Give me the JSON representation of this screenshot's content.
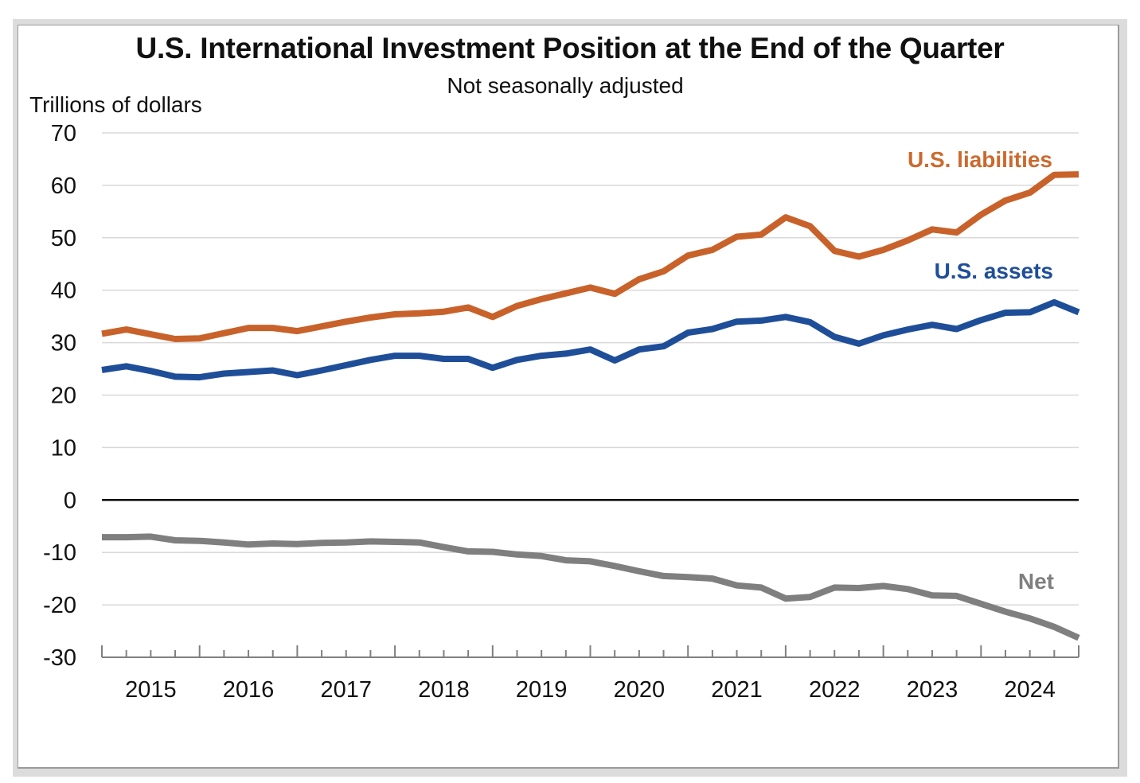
{
  "chart_data": {
    "type": "line",
    "title": "U.S. International Investment Position at the End of the Quarter",
    "subtitle": "Not seasonally adjusted",
    "ylabel": "Trillions of dollars",
    "xlabel": "",
    "ylim": [
      -30,
      70
    ],
    "yticks": [
      70,
      60,
      50,
      40,
      30,
      20,
      10,
      0,
      -10,
      -20,
      -30
    ],
    "year_labels": [
      "2015",
      "2016",
      "2017",
      "2018",
      "2019",
      "2020",
      "2021",
      "2022",
      "2023",
      "2024"
    ],
    "x": [
      "2014Q4",
      "2015Q1",
      "2015Q2",
      "2015Q3",
      "2015Q4",
      "2016Q1",
      "2016Q2",
      "2016Q3",
      "2016Q4",
      "2017Q1",
      "2017Q2",
      "2017Q3",
      "2017Q4",
      "2018Q1",
      "2018Q2",
      "2018Q3",
      "2018Q4",
      "2019Q1",
      "2019Q2",
      "2019Q3",
      "2019Q4",
      "2020Q1",
      "2020Q2",
      "2020Q3",
      "2020Q4",
      "2021Q1",
      "2021Q2",
      "2021Q3",
      "2021Q4",
      "2022Q1",
      "2022Q2",
      "2022Q3",
      "2022Q4",
      "2023Q1",
      "2023Q2",
      "2023Q3",
      "2023Q4",
      "2024Q1",
      "2024Q2",
      "2024Q3",
      "2024Q4"
    ],
    "grid": true,
    "series": [
      {
        "name": "U.S. liabilities",
        "color": "#c8622a",
        "values": [
          31.7,
          32.5,
          31.6,
          30.7,
          30.8,
          31.8,
          32.8,
          32.8,
          32.2,
          33.1,
          34.0,
          34.8,
          35.4,
          35.6,
          35.9,
          36.7,
          34.9,
          37.0,
          38.3,
          39.4,
          40.5,
          39.3,
          42.1,
          43.6,
          46.6,
          47.7,
          50.2,
          50.6,
          53.9,
          52.2,
          47.5,
          46.4,
          47.7,
          49.5,
          51.6,
          51.0,
          54.4,
          57.1,
          58.6,
          62.0,
          62.1
        ]
      },
      {
        "name": "U.S. assets",
        "color": "#1f4e99",
        "values": [
          24.8,
          25.5,
          24.6,
          23.5,
          23.4,
          24.1,
          24.4,
          24.7,
          23.8,
          24.7,
          25.7,
          26.7,
          27.5,
          27.5,
          26.9,
          26.9,
          25.2,
          26.7,
          27.5,
          27.9,
          28.7,
          26.6,
          28.7,
          29.3,
          31.9,
          32.6,
          34.0,
          34.2,
          34.9,
          33.9,
          31.1,
          29.8,
          31.4,
          32.5,
          33.4,
          32.6,
          34.3,
          35.7,
          35.8,
          37.7,
          35.8
        ]
      },
      {
        "name": "Net",
        "color": "#7f7f7f",
        "values": [
          -7.1,
          -7.1,
          -7.0,
          -7.7,
          -7.8,
          -8.1,
          -8.5,
          -8.3,
          -8.4,
          -8.2,
          -8.1,
          -7.9,
          -8.0,
          -8.1,
          -9.0,
          -9.8,
          -9.9,
          -10.4,
          -10.7,
          -11.5,
          -11.7,
          -12.6,
          -13.6,
          -14.5,
          -14.7,
          -15.0,
          -16.3,
          -16.7,
          -18.8,
          -18.5,
          -16.7,
          -16.8,
          -16.4,
          -17.0,
          -18.2,
          -18.3,
          -19.8,
          -21.3,
          -22.6,
          -24.2,
          -26.3
        ]
      }
    ],
    "series_labels": [
      {
        "text": "U.S. liabilities",
        "color": "#cb6a2e"
      },
      {
        "text": "U.S. assets",
        "color": "#1f4e99"
      },
      {
        "text": "Net",
        "color": "#7f7f7f"
      }
    ],
    "zero_line_color": "#000000",
    "gridline_color": "#d9d9d9",
    "axis_color": "#808080"
  }
}
